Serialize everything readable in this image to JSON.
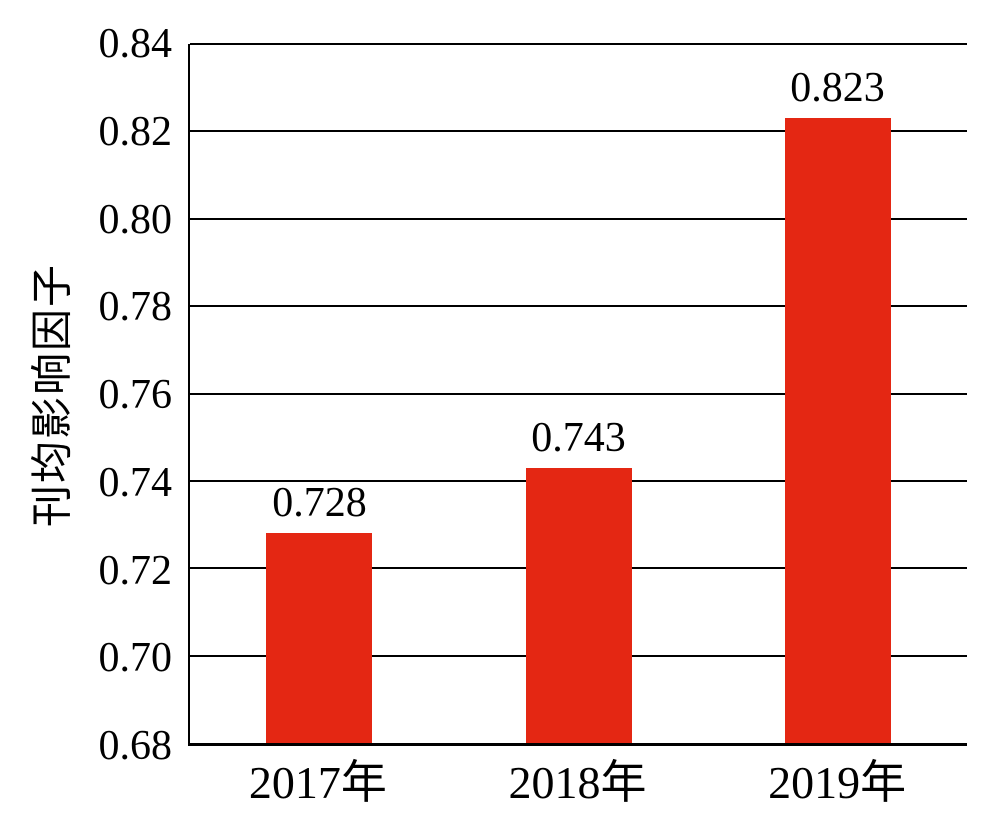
{
  "chart_data": {
    "type": "bar",
    "title": "",
    "xlabel": "",
    "ylabel": "刊均影响因子",
    "categories": [
      "2017年",
      "2018年",
      "2019年"
    ],
    "values": [
      0.728,
      0.743,
      0.823
    ],
    "value_labels": [
      "0.728",
      "0.743",
      "0.823"
    ],
    "ylim": [
      0.68,
      0.84
    ],
    "ytick_labels": [
      "0.84",
      "0.82",
      "0.80",
      "0.78",
      "0.76",
      "0.74",
      "0.72",
      "0.70",
      "0.68"
    ],
    "grid": true,
    "legend_position": "none",
    "bar_color": "#e42713",
    "axis_color": "#000000",
    "text_color": "#000000",
    "background_color": "#ffffff"
  }
}
